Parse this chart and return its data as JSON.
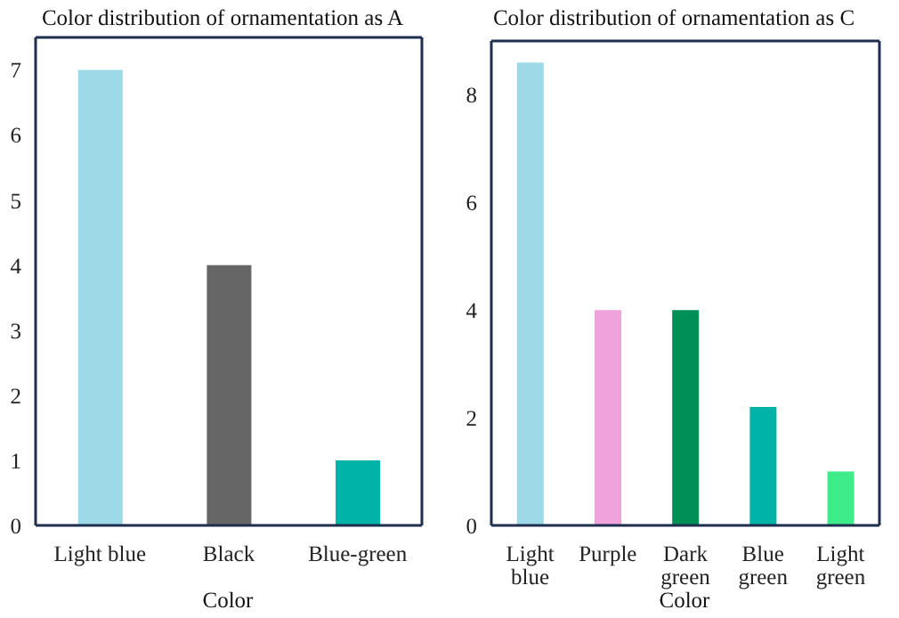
{
  "chart_data": [
    {
      "type": "bar",
      "title": "Color distribution of ornamentation as A",
      "xlabel": "Color",
      "categories": [
        "Light blue",
        "Black",
        "Blue-green"
      ],
      "values": [
        7,
        4,
        1
      ],
      "colors": [
        "#9dd9e6",
        "#666666",
        "#00b3a8"
      ],
      "ylim": [
        0,
        7.5
      ],
      "yticks": [
        0,
        1,
        2,
        3,
        4,
        5,
        6,
        7
      ],
      "grid": false,
      "legend": false
    },
    {
      "type": "bar",
      "title": "Color distribution of ornamentation as C",
      "xlabel": "Color",
      "categories": [
        "Light blue",
        "Purple",
        "Dark green",
        "Blue green",
        "Light green"
      ],
      "values": [
        8.6,
        4,
        4,
        2.2,
        1
      ],
      "colors": [
        "#9dd9e6",
        "#f0a2dd",
        "#008f54",
        "#00b3a8",
        "#3fec8a"
      ],
      "ylim": [
        0,
        9
      ],
      "yticks": [
        0,
        2,
        4,
        6,
        8
      ],
      "grid": false,
      "legend": false
    }
  ]
}
